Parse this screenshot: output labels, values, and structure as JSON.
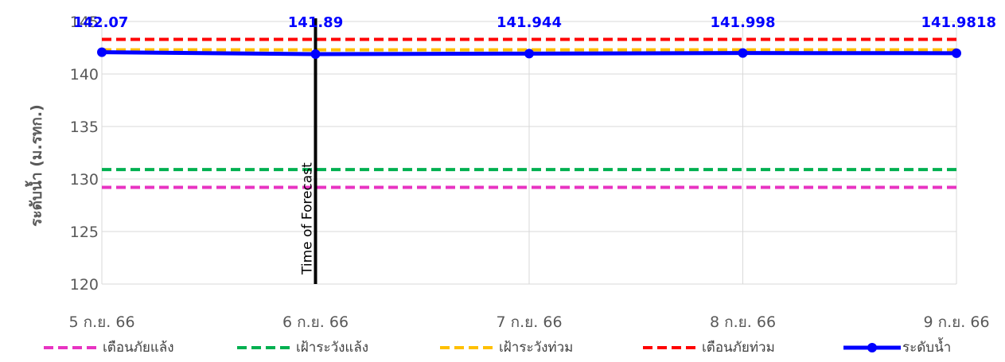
{
  "chart_data": {
    "type": "line",
    "ylabel": "ระดับน้ำ (ม.รทก.)",
    "xlabel": "",
    "categories": [
      "5 ก.ย. 66",
      "6 ก.ย. 66",
      "7 ก.ย. 66",
      "8 ก.ย. 66",
      "9 ก.ย. 66"
    ],
    "ylim": [
      120,
      145
    ],
    "yticks": [
      120,
      125,
      130,
      135,
      140,
      145
    ],
    "grid": true,
    "legend_position": "bottom",
    "thresholds": [
      {
        "name": "เตือนภัยแล้ง",
        "value": 129.2,
        "color": "#e833c2"
      },
      {
        "name": "เฝ้าระวังแล้ง",
        "value": 130.9,
        "color": "#00b050"
      },
      {
        "name": "เฝ้าระวังท่วม",
        "value": 142.3,
        "color": "#ffc000"
      },
      {
        "name": "เตือนภัยท่วม",
        "value": 143.3,
        "color": "#ff0000"
      }
    ],
    "series": [
      {
        "name": "ระดับน้ำ",
        "color": "#0000ff",
        "values": [
          142.07,
          141.89,
          141.944,
          141.998,
          141.9818
        ],
        "labels": [
          "142.07",
          "141.89",
          "141.944",
          "141.998",
          "141.9818"
        ]
      }
    ],
    "annotations": [
      {
        "text": "Time of Forecast",
        "category_index": 1
      }
    ]
  }
}
